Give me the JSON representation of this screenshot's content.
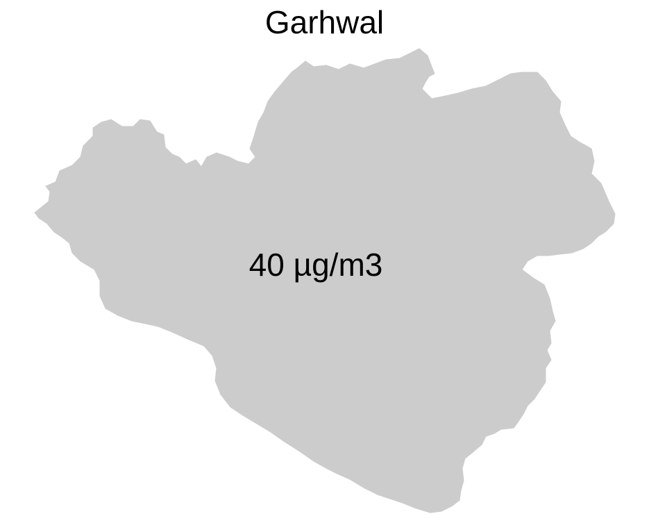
{
  "map": {
    "title": "Garhwal",
    "value_label": "40 µg/m3",
    "region_fill": "#cccccc",
    "background": "#ffffff"
  }
}
